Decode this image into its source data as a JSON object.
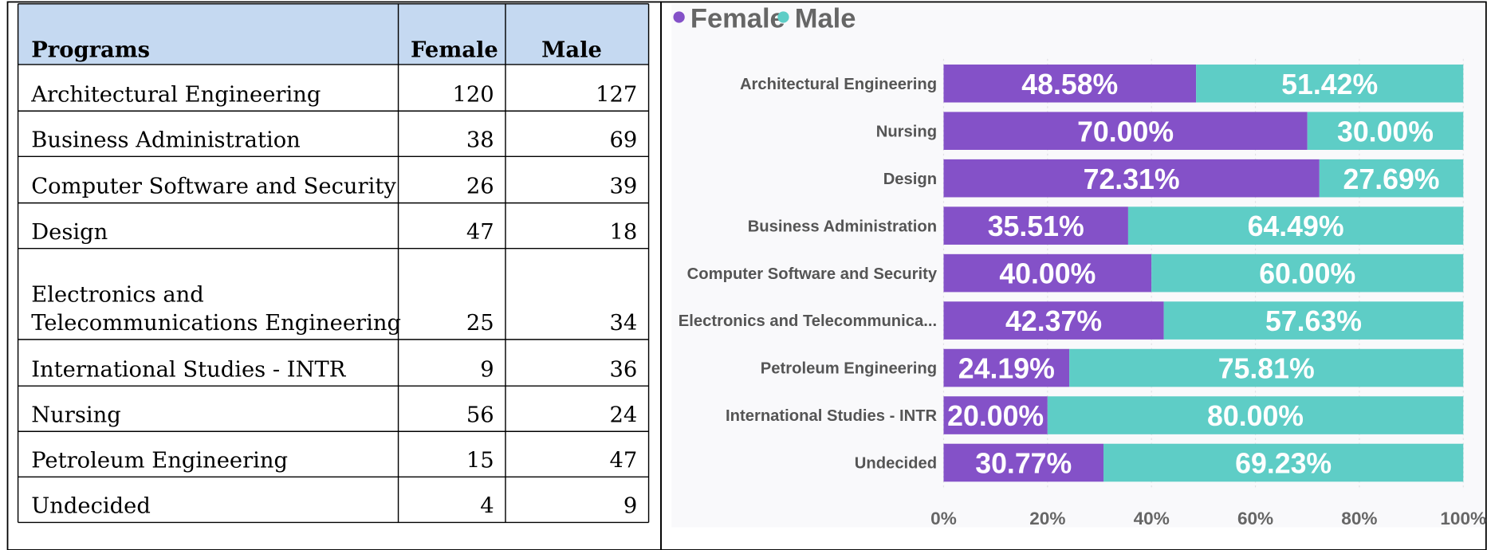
{
  "table": {
    "header": [
      "Programs",
      "Female",
      "Male"
    ],
    "rows": [
      [
        "Architectural Engineering",
        120,
        127
      ],
      [
        "Business Administration",
        38,
        69
      ],
      [
        "Computer Software and Security",
        26,
        39
      ],
      [
        "Design",
        47,
        18
      ],
      [
        "Electronics and Telecommunications Engineering",
        25,
        34
      ],
      [
        "International Studies - INTR",
        9,
        36
      ],
      [
        "Nursing",
        56,
        24
      ],
      [
        "Petroleum Engineering",
        15,
        47
      ],
      [
        "Undecided",
        4,
        9
      ]
    ]
  },
  "chart_data": {
    "type": "bar",
    "orientation": "horizontal",
    "stacked": true,
    "legend": "top-left",
    "categories": [
      "Architectural Engineering",
      "Nursing",
      "Design",
      "Business Administration",
      "Computer Software and Security",
      "Electronics and Telecommunica...",
      "Petroleum Engineering",
      "International Studies - INTR",
      "Undecided"
    ],
    "series": [
      {
        "name": "Female",
        "color": "#8451c8",
        "values": [
          48.58,
          70,
          72.31,
          35.51,
          40,
          42.37,
          24.19,
          20,
          30.77
        ],
        "value_labels": [
          "48.58%",
          "70.00%",
          "72.31%",
          "35.51%",
          "40.00%",
          "42.37%",
          "24.19%",
          "20.00%",
          "30.77%"
        ]
      },
      {
        "name": "Male",
        "color": "#5ecdc6",
        "values": [
          51.42,
          30,
          27.69,
          64.49,
          60,
          57.63,
          75.81,
          80,
          69.23
        ],
        "value_labels": [
          "51.42%",
          "30.00%",
          "27.69%",
          "64.49%",
          "60.00%",
          "57.63%",
          "75.81%",
          "80.00%",
          "69.23%"
        ]
      }
    ],
    "xlim": [
      0,
      100
    ],
    "xticks": [
      {
        "value": 0,
        "label": "0%"
      },
      {
        "value": 20,
        "label": "20%"
      },
      {
        "value": 40,
        "label": "40%"
      },
      {
        "value": 60,
        "label": "60%"
      },
      {
        "value": 80,
        "label": "80%"
      },
      {
        "value": 100,
        "label": "100%"
      }
    ],
    "grid": true
  }
}
